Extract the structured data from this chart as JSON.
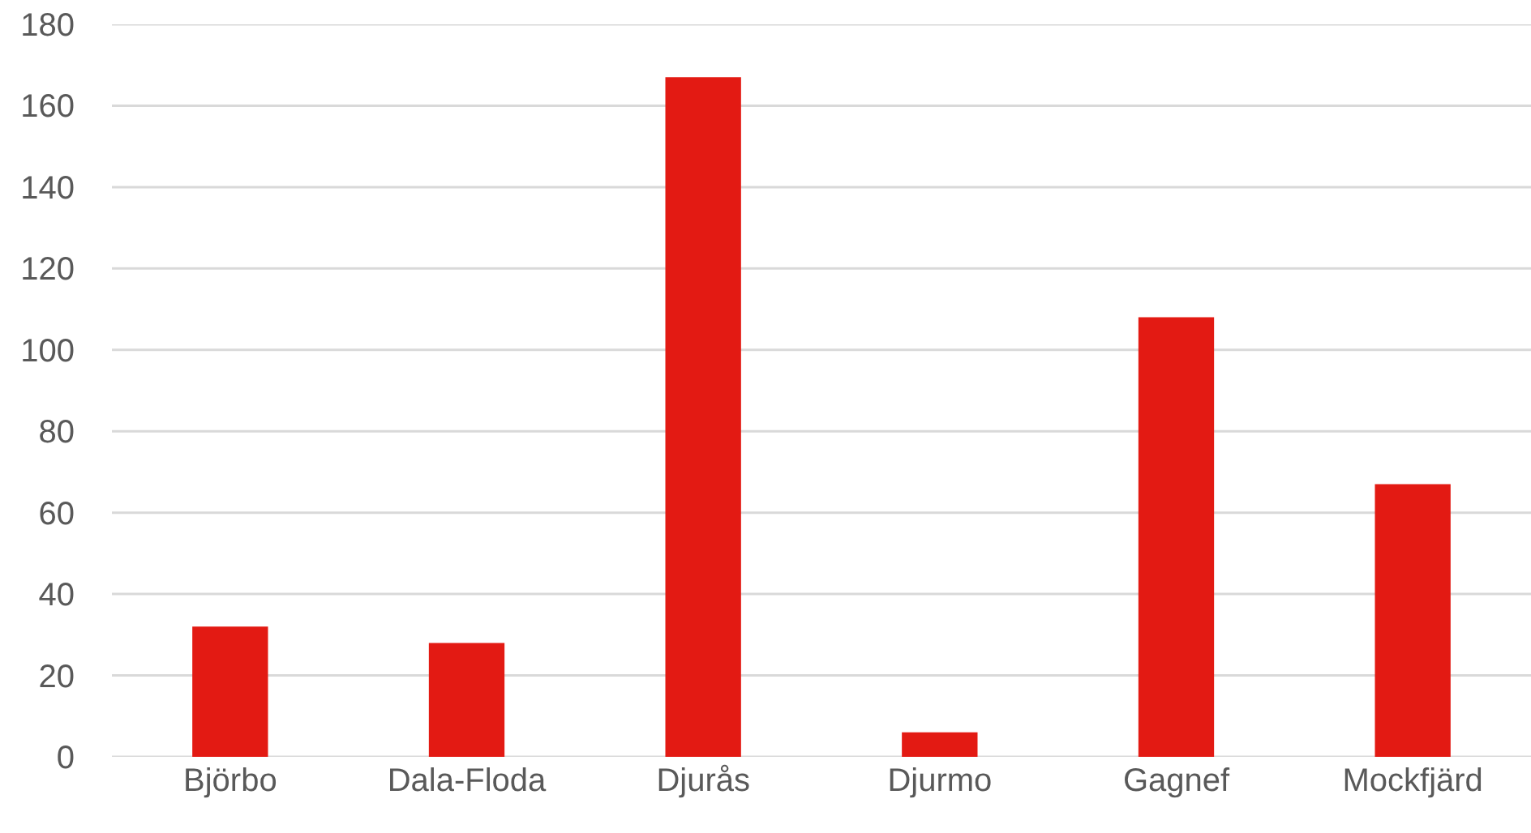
{
  "chart_data": {
    "type": "bar",
    "categories": [
      "Björbo",
      "Dala-Floda",
      "Djurås",
      "Djurmo",
      "Gagnef",
      "Mockfjärd"
    ],
    "values": [
      32,
      28,
      167,
      6,
      108,
      67
    ],
    "color": "#e31a13",
    "ylim": [
      0,
      180
    ],
    "yticks": [
      0,
      20,
      40,
      60,
      80,
      100,
      120,
      140,
      160,
      180
    ],
    "grid": "y"
  }
}
